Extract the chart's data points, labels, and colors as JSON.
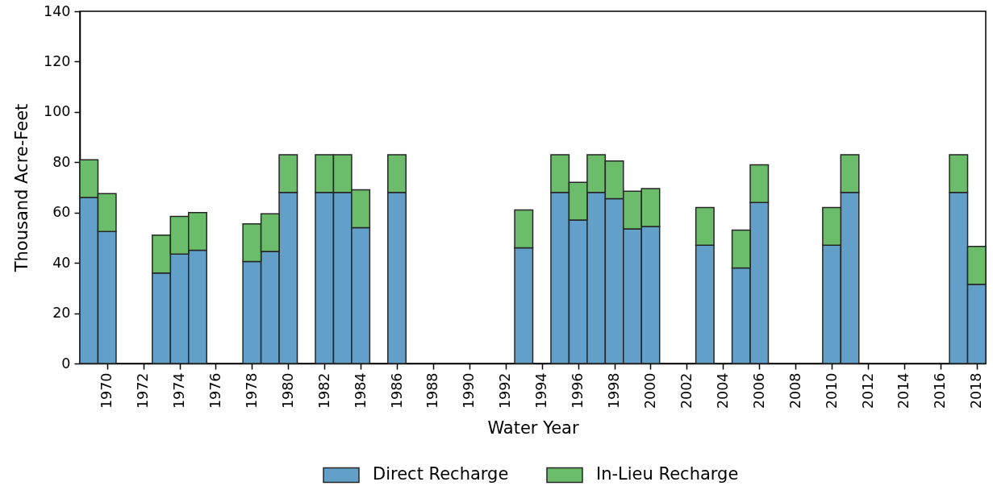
{
  "chart_data": {
    "type": "bar",
    "stacked": true,
    "xlabel": "Water Year",
    "ylabel": "Thousand Acre-Feet",
    "legend": "bottom",
    "x": [
      1969,
      1970,
      1973,
      1974,
      1975,
      1978,
      1979,
      1980,
      1982,
      1983,
      1984,
      1986,
      1993,
      1995,
      1996,
      1997,
      1998,
      1999,
      2000,
      2003,
      2005,
      2006,
      2010,
      2011,
      2017,
      2018
    ],
    "series": [
      {
        "name": "Direct Recharge",
        "color": "#62a0ca",
        "values": [
          66,
          52.5,
          36,
          43.5,
          45,
          40.5,
          44.5,
          68,
          68,
          68,
          54,
          68,
          46,
          68,
          57,
          68,
          65.5,
          53.5,
          54.5,
          47,
          38,
          64,
          47,
          68,
          68,
          31.5
        ]
      },
      {
        "name": "In-Lieu Recharge",
        "color": "#6bbd6b",
        "values": [
          15,
          15,
          15,
          15,
          15,
          15,
          15,
          15,
          15,
          15,
          15,
          15,
          15,
          15,
          15,
          15,
          15,
          15,
          15,
          15,
          15,
          15,
          15,
          15,
          15,
          15
        ]
      }
    ],
    "xlim": [
      1968.5,
      2018.5
    ],
    "xticks": [
      1970,
      1972,
      1974,
      1976,
      1978,
      1980,
      1982,
      1984,
      1986,
      1988,
      1990,
      1992,
      1994,
      1996,
      1998,
      2000,
      2002,
      2004,
      2006,
      2008,
      2010,
      2012,
      2014,
      2016,
      2018
    ],
    "ylim": [
      0,
      140
    ],
    "yticks": [
      0,
      20,
      40,
      60,
      80,
      100,
      120,
      140
    ]
  }
}
